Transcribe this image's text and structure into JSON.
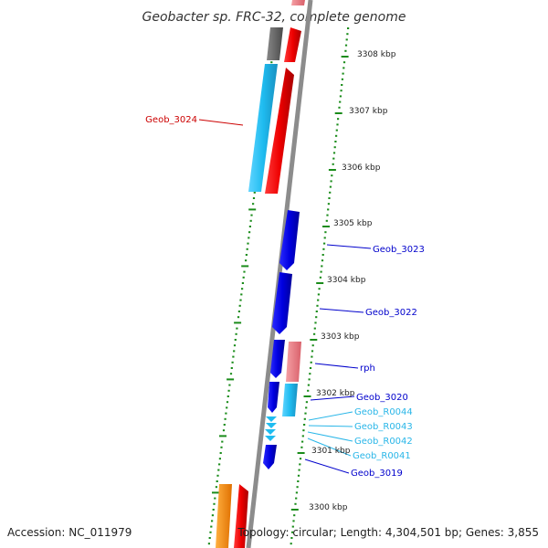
{
  "title": "Geobacter sp. FRC-32, complete genome",
  "footer": {
    "accession": "Accession: NC_011979",
    "summary": "Topology: circular; Length: 4,304,501 bp; Genes: 3,855"
  },
  "scale_labels": [
    "3308 kbp",
    "3307 kbp",
    "3306 kbp",
    "3305 kbp",
    "3304 kbp",
    "3303 kbp",
    "3302 kbp",
    "3301 kbp",
    "3300 kbp"
  ],
  "gene_labels": [
    {
      "name": "Geob_3024",
      "color": "#cc0000"
    },
    {
      "name": "Geob_3023",
      "color": "#0000cc"
    },
    {
      "name": "Geob_3022",
      "color": "#0000cc"
    },
    {
      "name": "rph",
      "color": "#0000cc"
    },
    {
      "name": "Geob_3020",
      "color": "#0000cc"
    },
    {
      "name": "Geob_R0044",
      "color": "#29b6e8"
    },
    {
      "name": "Geob_R0043",
      "color": "#29b6e8"
    },
    {
      "name": "Geob_R0042",
      "color": "#29b6e8"
    },
    {
      "name": "Geob_R0041",
      "color": "#29b6e8"
    },
    {
      "name": "Geob_3019",
      "color": "#0000cc"
    }
  ],
  "colors": {
    "backbone": "#8c8c8c",
    "tick": "#1a8c1a",
    "cds_reverse": "#0000e6",
    "cds_forward_red": "#ee0000",
    "pseudo_pink": "#ec7f86",
    "rna_cyan": "#1fbcf0",
    "gray_feature": "#6d6d6d",
    "orange_feature": "#ff8c00"
  }
}
